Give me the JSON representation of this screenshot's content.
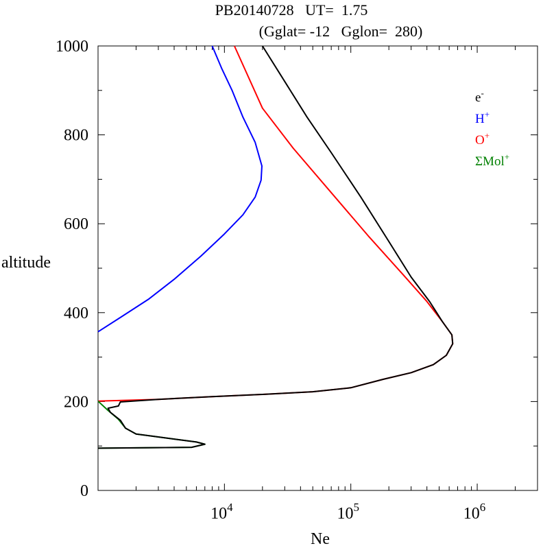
{
  "chart_data": {
    "type": "line",
    "title": "PB20140728   UT=  1.75",
    "subtitle": "(Gglat= -12   Gglon=  280)",
    "xlabel": "Ne",
    "ylabel": "altitude",
    "xscale": "log",
    "xlim": [
      1000,
      3000000
    ],
    "ylim": [
      0,
      1000
    ],
    "x_tick_labels": [
      {
        "value": 10000,
        "base": "10",
        "exp": "4"
      },
      {
        "value": 100000,
        "base": "10",
        "exp": "5"
      },
      {
        "value": 1000000,
        "base": "10",
        "exp": "6"
      }
    ],
    "y_tick_labels": [
      {
        "value": 0,
        "label": "0"
      },
      {
        "value": 200,
        "label": "200"
      },
      {
        "value": 400,
        "label": "400"
      },
      {
        "value": 600,
        "label": "600"
      },
      {
        "value": 800,
        "label": "800"
      },
      {
        "value": 1000,
        "label": "1000"
      }
    ],
    "grid": false,
    "legend_position": "top-right",
    "series": [
      {
        "name": "e",
        "sup": "-",
        "color": "#000000",
        "points": [
          [
            1000,
            95
          ],
          [
            5500,
            97
          ],
          [
            7000,
            104
          ],
          [
            6000,
            109
          ],
          [
            2000,
            127
          ],
          [
            1650,
            140
          ],
          [
            1500,
            158
          ],
          [
            1250,
            176
          ],
          [
            1200,
            185
          ],
          [
            1450,
            190
          ],
          [
            1500,
            199
          ],
          [
            3000,
            205
          ],
          [
            8000,
            211
          ],
          [
            20000,
            216
          ],
          [
            50000,
            222
          ],
          [
            100000,
            231
          ],
          [
            180000,
            250
          ],
          [
            300000,
            265
          ],
          [
            450000,
            283
          ],
          [
            570000,
            304
          ],
          [
            640000,
            330
          ],
          [
            630000,
            350
          ],
          [
            530000,
            380
          ],
          [
            420000,
            425
          ],
          [
            300000,
            480
          ],
          [
            200000,
            560
          ],
          [
            120000,
            660
          ],
          [
            70000,
            760
          ],
          [
            45000,
            840
          ],
          [
            30000,
            920
          ],
          [
            20000,
            1000
          ]
        ]
      },
      {
        "name": "H",
        "sup": "+",
        "color": "#0000ff",
        "points": [
          [
            1000,
            357
          ],
          [
            1500,
            389
          ],
          [
            2500,
            430
          ],
          [
            4000,
            475
          ],
          [
            6500,
            527
          ],
          [
            10000,
            577
          ],
          [
            14000,
            620
          ],
          [
            17500,
            660
          ],
          [
            19500,
            698
          ],
          [
            19800,
            730
          ],
          [
            17500,
            783
          ],
          [
            14000,
            840
          ],
          [
            11500,
            900
          ],
          [
            9500,
            950
          ],
          [
            8000,
            1000
          ]
        ]
      },
      {
        "name": "O",
        "sup": "+",
        "color": "#ff0000",
        "points": [
          [
            1000,
            201
          ],
          [
            3000,
            205
          ],
          [
            8000,
            211
          ],
          [
            20000,
            216
          ],
          [
            50000,
            222
          ],
          [
            100000,
            231
          ],
          [
            180000,
            250
          ],
          [
            300000,
            265
          ],
          [
            450000,
            283
          ],
          [
            570000,
            304
          ],
          [
            640000,
            330
          ],
          [
            630000,
            350
          ],
          [
            530000,
            380
          ],
          [
            400000,
            425
          ],
          [
            260000,
            485
          ],
          [
            140000,
            570
          ],
          [
            70000,
            670
          ],
          [
            35000,
            770
          ],
          [
            20000,
            860
          ],
          [
            12000,
            1000
          ]
        ]
      },
      {
        "name": "ΣMol",
        "sup": "+",
        "color": "#008000",
        "points": [
          [
            1000,
            95
          ],
          [
            5500,
            97
          ],
          [
            7000,
            104
          ],
          [
            6000,
            109
          ],
          [
            2000,
            127
          ],
          [
            1650,
            140
          ],
          [
            1450,
            160
          ],
          [
            1200,
            180
          ],
          [
            1000,
            201
          ]
        ]
      }
    ]
  }
}
